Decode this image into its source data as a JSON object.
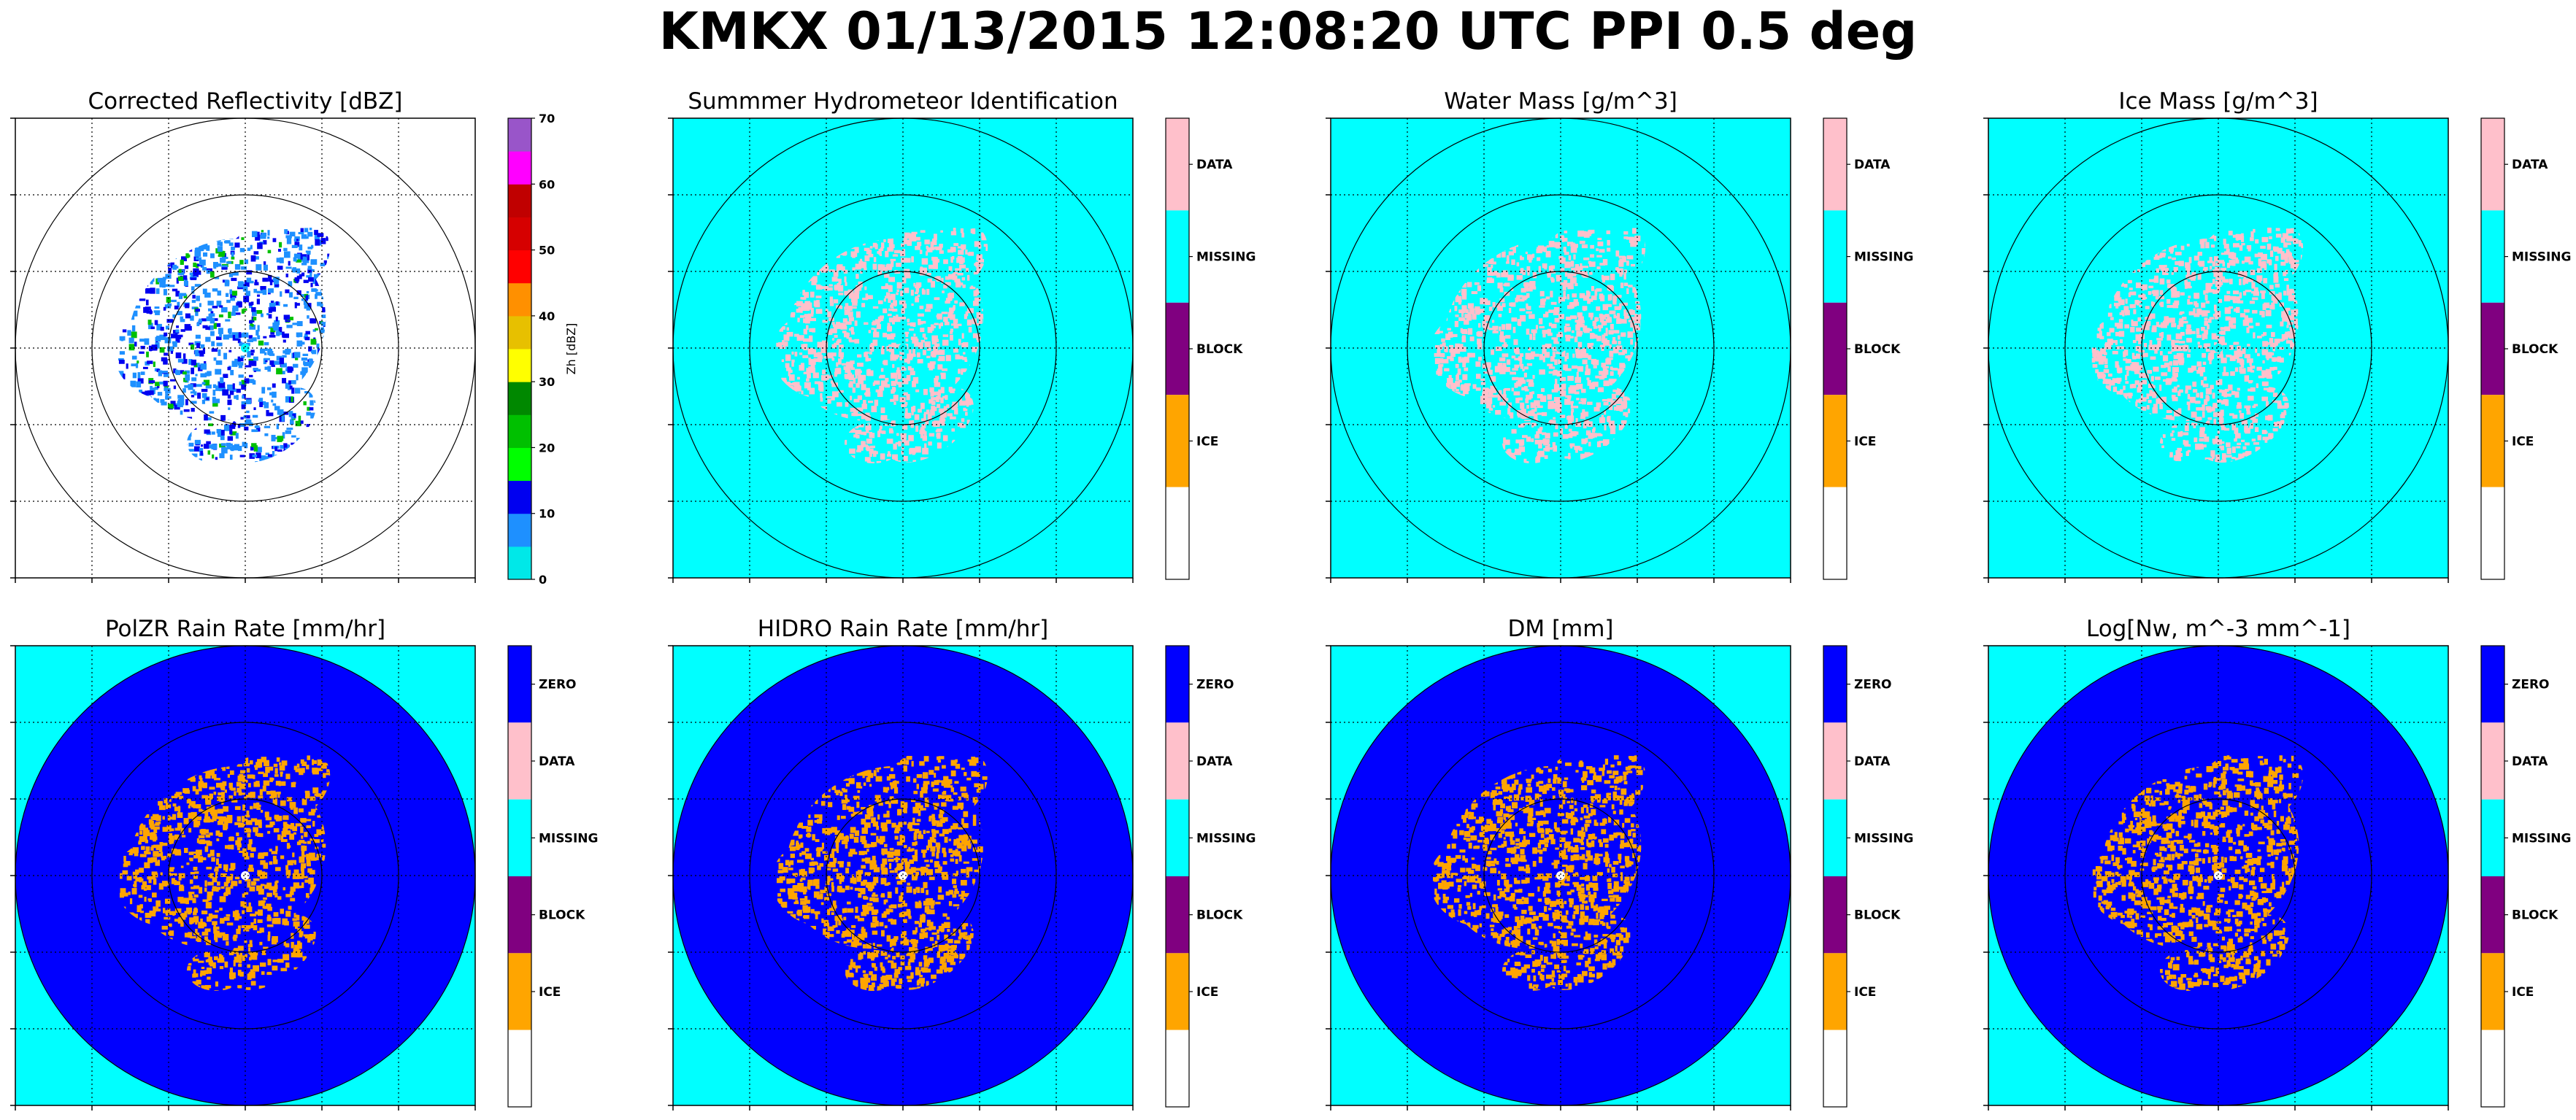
{
  "suptitle": "KMKX 01/13/2015 12:08:20 UTC PPI 0.5 deg",
  "colors": {
    "zero": "#0000ff",
    "data": "#ffc0cb",
    "missing": "#00ffff",
    "block": "#800080",
    "ice": "#ffa500",
    "reflectivity": [
      "#00e8e8",
      "#1e90ff",
      "#0000f0",
      "#00ff00",
      "#00c000",
      "#008800",
      "#ffff00",
      "#e7c000",
      "#ff9000",
      "#ff0000",
      "#d60000",
      "#c00000",
      "#ff00ff",
      "#9955c9"
    ]
  },
  "chart_data": [
    {
      "type": "heatmap",
      "title": "Corrected Reflectivity [dBZ]",
      "xlabel": "",
      "ylabel": "",
      "background": "white",
      "colorbar": {
        "label": "Zh [dBZ]",
        "ticks": [
          0,
          10,
          20,
          30,
          40,
          50,
          60,
          70
        ],
        "range": [
          0,
          70
        ]
      },
      "range_rings": 3,
      "grid": true
    },
    {
      "type": "heatmap",
      "title": "Summmer Hydrometeor Identification",
      "xlabel": "",
      "ylabel": "",
      "background": "missing",
      "colorbar": {
        "categories": [
          "DATA",
          "MISSING",
          "BLOCK",
          "ICE"
        ]
      },
      "range_rings": 3,
      "grid": true
    },
    {
      "type": "heatmap",
      "title": "Water Mass [g/m^3]",
      "xlabel": "",
      "ylabel": "",
      "background": "missing",
      "colorbar": {
        "categories": [
          "DATA",
          "MISSING",
          "BLOCK",
          "ICE"
        ]
      },
      "range_rings": 3,
      "grid": true
    },
    {
      "type": "heatmap",
      "title": "Ice Mass [g/m^3]",
      "xlabel": "",
      "ylabel": "",
      "background": "missing",
      "colorbar": {
        "categories": [
          "DATA",
          "MISSING",
          "BLOCK",
          "ICE"
        ]
      },
      "range_rings": 3,
      "grid": true
    },
    {
      "type": "heatmap",
      "title": "PolZR Rain Rate [mm/hr]",
      "xlabel": "",
      "ylabel": "",
      "background": "missing",
      "colorbar": {
        "categories": [
          "ZERO",
          "DATA",
          "MISSING",
          "BLOCK",
          "ICE"
        ]
      },
      "range_rings": 3,
      "grid": true
    },
    {
      "type": "heatmap",
      "title": "HIDRO Rain Rate [mm/hr]",
      "xlabel": "",
      "ylabel": "",
      "background": "missing",
      "colorbar": {
        "categories": [
          "ZERO",
          "DATA",
          "MISSING",
          "BLOCK",
          "ICE"
        ]
      },
      "range_rings": 3,
      "grid": true
    },
    {
      "type": "heatmap",
      "title": "DM [mm]",
      "xlabel": "",
      "ylabel": "",
      "background": "missing",
      "colorbar": {
        "categories": [
          "ZERO",
          "DATA",
          "MISSING",
          "BLOCK",
          "ICE"
        ]
      },
      "range_rings": 3,
      "grid": true
    },
    {
      "type": "heatmap",
      "title": "Log[Nw, m^-3 mm^-1]",
      "xlabel": "",
      "ylabel": "",
      "background": "missing",
      "colorbar": {
        "categories": [
          "ZERO",
          "DATA",
          "MISSING",
          "BLOCK",
          "ICE"
        ]
      },
      "range_rings": 3,
      "grid": true
    }
  ]
}
